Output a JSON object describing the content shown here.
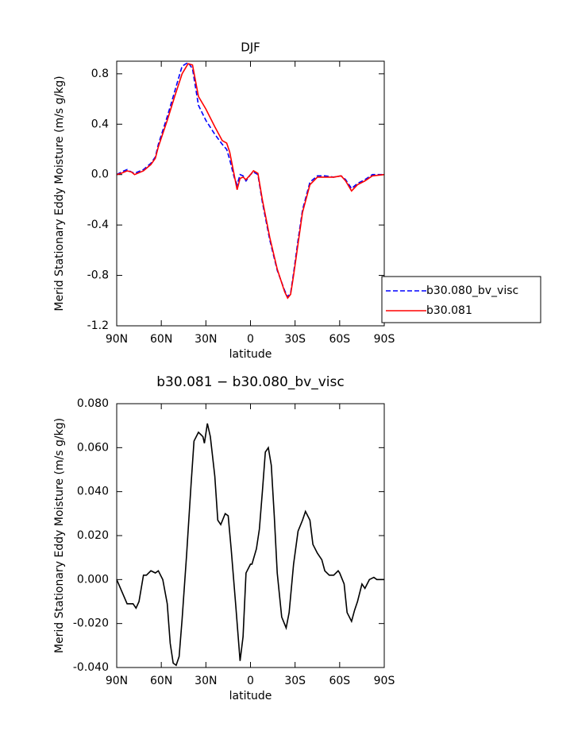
{
  "chart_data": [
    {
      "type": "line",
      "title": "DJF",
      "y_label": "Merid Stationary Eddy Moisture (m/s g/kg)",
      "x_label": "latitude",
      "x": [
        90,
        87,
        83,
        80,
        78,
        72,
        67,
        64,
        62,
        56,
        51,
        46,
        42,
        39,
        35,
        30,
        24,
        19,
        16,
        14,
        11,
        9,
        7,
        5,
        3,
        0,
        -2,
        -5,
        -8,
        -13,
        -18,
        -23,
        -25,
        -27,
        -29,
        -32,
        -35,
        -40,
        -45,
        -50,
        -56,
        -61,
        -64,
        -68,
        -72,
        -77,
        -82,
        -90
      ],
      "series": [
        {
          "name": "b30.080_bv_visc",
          "color": "#0000ff",
          "line_style": "dashed",
          "values": [
            0,
            0.02,
            0.04,
            0.02,
            0.01,
            0.04,
            0.09,
            0.14,
            0.24,
            0.46,
            0.66,
            0.86,
            0.89,
            0.84,
            0.55,
            0.43,
            0.32,
            0.24,
            0.2,
            0.12,
            -0.02,
            -0.08,
            0.0,
            -0.01,
            -0.05,
            0.0,
            0.02,
            0.0,
            -0.22,
            -0.52,
            -0.76,
            -0.92,
            -0.97,
            -0.94,
            -0.78,
            -0.52,
            -0.28,
            -0.06,
            -0.01,
            -0.01,
            -0.02,
            -0.01,
            -0.04,
            -0.11,
            -0.07,
            -0.04,
            0.0,
            0.0
          ]
        },
        {
          "name": "b30.081",
          "color": "#ff0000",
          "line_style": "solid",
          "values": [
            0,
            0.01,
            0.03,
            0.02,
            0.0,
            0.03,
            0.08,
            0.13,
            0.22,
            0.43,
            0.62,
            0.8,
            0.88,
            0.87,
            0.62,
            0.52,
            0.38,
            0.27,
            0.25,
            0.18,
            0.0,
            -0.12,
            -0.03,
            -0.02,
            -0.04,
            0.0,
            0.03,
            0.01,
            -0.2,
            -0.5,
            -0.75,
            -0.93,
            -0.98,
            -0.95,
            -0.8,
            -0.55,
            -0.3,
            -0.08,
            -0.02,
            -0.02,
            -0.02,
            -0.01,
            -0.05,
            -0.13,
            -0.08,
            -0.05,
            -0.01,
            0.0
          ]
        }
      ],
      "xlim": [
        90,
        -90
      ],
      "xticks": [
        {
          "value": 90,
          "label": "90N"
        },
        {
          "value": 60,
          "label": "60N"
        },
        {
          "value": 30,
          "label": "30N"
        },
        0,
        {
          "value": -30,
          "label": "30S"
        },
        {
          "value": -60,
          "label": "60S"
        },
        {
          "value": -90,
          "label": "90S"
        }
      ],
      "ylim": [
        -1.2,
        0.9
      ],
      "yticks": [
        0.8,
        0.4,
        {
          "value": 0,
          "label": "0.0"
        },
        -0.4,
        -0.8,
        -1.2
      ],
      "legend": "right"
    },
    {
      "type": "line",
      "title": "b30.081 − b30.080_bv_visc",
      "y_label": "Merid Stationary Eddy Moisture (m/s g/kg)",
      "x_label": "latitude",
      "x": [
        90,
        83,
        79,
        77,
        75,
        72,
        70,
        67,
        64,
        62,
        59,
        56,
        54,
        52,
        50,
        48,
        46,
        43,
        40,
        38,
        35,
        32,
        31,
        29,
        27,
        24,
        22,
        20,
        17,
        15,
        13,
        10,
        7,
        5,
        3,
        0,
        -1,
        -4,
        -6,
        -8,
        -10,
        -12,
        -14,
        -16,
        -18,
        -21,
        -24,
        -26,
        -29,
        -32,
        -35,
        -37,
        -40,
        -42,
        -45,
        -48,
        -50,
        -53,
        -56,
        -59,
        -60,
        -63,
        -65,
        -68,
        -70,
        -72,
        -75,
        -77,
        -80,
        -83,
        -85,
        -90
      ],
      "series": [
        {
          "name": "b30.081 − b30.080_bv_visc",
          "color": "#000000",
          "line_style": "solid",
          "values": [
            0.0,
            -0.011,
            -0.011,
            -0.013,
            -0.01,
            0.002,
            0.002,
            0.004,
            0.003,
            0.004,
            0.0,
            -0.011,
            -0.029,
            -0.038,
            -0.039,
            -0.035,
            -0.018,
            0.011,
            0.043,
            0.063,
            0.067,
            0.065,
            0.062,
            0.071,
            0.065,
            0.047,
            0.027,
            0.025,
            0.03,
            0.029,
            0.014,
            -0.011,
            -0.037,
            -0.026,
            0.003,
            0.007,
            0.007,
            0.014,
            0.023,
            0.04,
            0.058,
            0.06,
            0.052,
            0.029,
            0.003,
            -0.017,
            -0.022,
            -0.015,
            0.007,
            0.022,
            0.027,
            0.031,
            0.027,
            0.016,
            0.012,
            0.009,
            0.004,
            0.002,
            0.002,
            0.004,
            0.003,
            -0.002,
            -0.015,
            -0.019,
            -0.014,
            -0.01,
            -0.002,
            -0.004,
            0.0,
            0.001,
            0.0,
            0.0
          ]
        }
      ],
      "xlim": [
        90,
        -90
      ],
      "xticks": [
        {
          "value": 90,
          "label": "90N"
        },
        {
          "value": 60,
          "label": "60N"
        },
        {
          "value": 30,
          "label": "30N"
        },
        0,
        {
          "value": -30,
          "label": "30S"
        },
        {
          "value": -60,
          "label": "60S"
        },
        {
          "value": -90,
          "label": "90S"
        }
      ],
      "ylim": [
        -0.04,
        0.08
      ],
      "yticks": [
        {
          "value": 0.08,
          "label": "0.080"
        },
        {
          "value": 0.06,
          "label": "0.060"
        },
        {
          "value": 0.04,
          "label": "0.040"
        },
        {
          "value": 0.02,
          "label": "0.020"
        },
        {
          "value": 0,
          "label": "0.000"
        },
        {
          "value": -0.02,
          "label": "-0.020"
        },
        {
          "value": -0.04,
          "label": "-0.040"
        }
      ]
    }
  ]
}
